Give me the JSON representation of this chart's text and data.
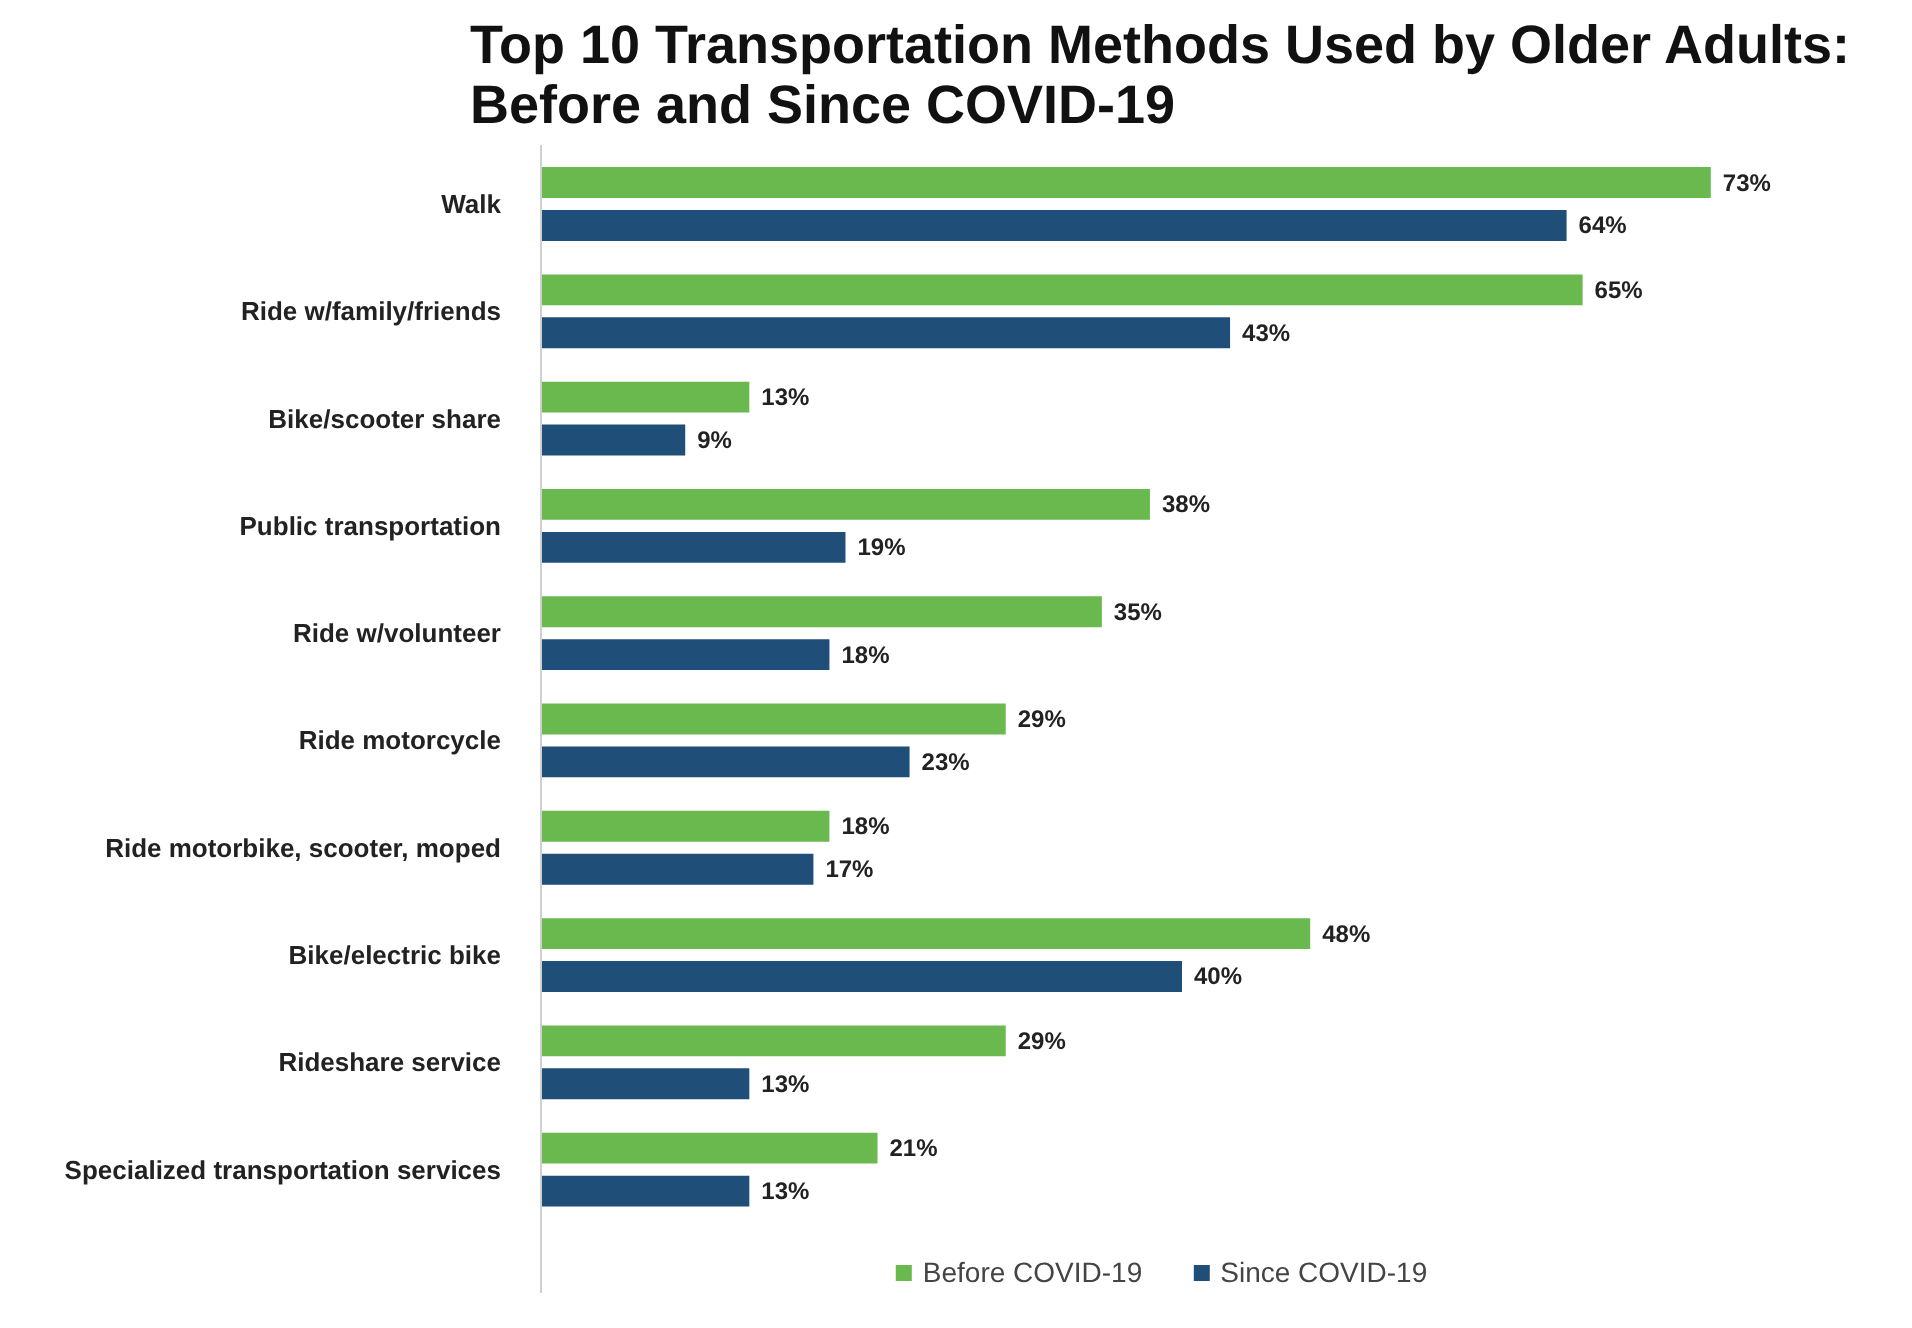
{
  "chart_data": {
    "type": "bar",
    "orientation": "horizontal",
    "title": "Top 10 Transportation Methods Used by Older Adults: Before and Since COVID-19",
    "categories": [
      "Walk",
      "Ride w/family/friends",
      "Bike/scooter share",
      "Public transportation",
      "Ride w/volunteer",
      "Ride motorcycle",
      "Ride motorbike, scooter, moped",
      "Bike/electric bike",
      "Rideshare service",
      "Specialized transportation services"
    ],
    "series": [
      {
        "name": "Before COVID-19",
        "color": "#6ab94f",
        "values": [
          73,
          65,
          13,
          38,
          35,
          29,
          18,
          48,
          29,
          21
        ],
        "value_labels": [
          "73%",
          "65%",
          "13%",
          "38%",
          "35%",
          "29%",
          "18%",
          "48%",
          "29%",
          "21%"
        ]
      },
      {
        "name": "Since COVID-19",
        "color": "#1f4e79",
        "values": [
          64,
          43,
          9,
          19,
          18,
          23,
          17,
          40,
          13,
          13
        ],
        "value_labels": [
          "64%",
          "43%",
          "9%",
          "19%",
          "18%",
          "23%",
          "17%",
          "40%",
          "13%",
          "13%"
        ]
      }
    ],
    "legend": "bottom",
    "grid": false
  }
}
